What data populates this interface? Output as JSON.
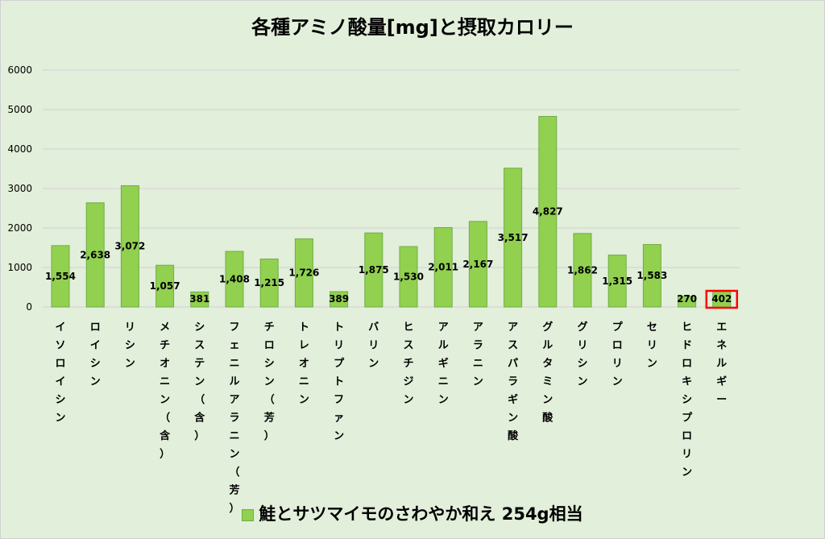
{
  "chart_data": {
    "type": "bar",
    "title": "各種アミノ酸量[mg]と摂取カロリー",
    "categories": [
      "イソロイシン",
      "ロイシン",
      "リシン",
      "メチオニン（含）",
      "システン（含）",
      "フェニルアラニン（芳）",
      "チロシン（芳）",
      "トレオニン",
      "トリプトファン",
      "バリン",
      "ヒスチジン",
      "アルギニン",
      "アラニン",
      "アスパラギン酸",
      "グルタミン酸",
      "グリシン",
      "プロリン",
      "セリン",
      "ヒドロキシプロリン",
      "エネルギー"
    ],
    "series": [
      {
        "name": "鮭とサツマイモのさわやか和え 254g相当",
        "values": [
          1554,
          2638,
          3072,
          1057,
          381,
          1408,
          1215,
          1726,
          389,
          1875,
          1530,
          2011,
          2167,
          3517,
          4827,
          1862,
          1315,
          1583,
          270,
          402
        ],
        "labels": [
          "1,554",
          "2,638",
          "3,072",
          "1,057",
          "381",
          "1,408",
          "1,215",
          "1,726",
          "389",
          "1,875",
          "1,530",
          "2,011",
          "2,167",
          "3,517",
          "4,827",
          "1,862",
          "1,315",
          "1,583",
          "270",
          "402"
        ]
      }
    ],
    "yticks": [
      "0",
      "1000",
      "2000",
      "3000",
      "4000",
      "5000",
      "6000"
    ],
    "ylim": [
      0,
      6000
    ],
    "grid": true,
    "legend": "bottom",
    "highlighted_category": "エネルギー",
    "colors": {
      "bar": "#92d050",
      "bar_border": "#70ad47",
      "highlight": "#ff0000",
      "background": "#e2efda"
    }
  }
}
